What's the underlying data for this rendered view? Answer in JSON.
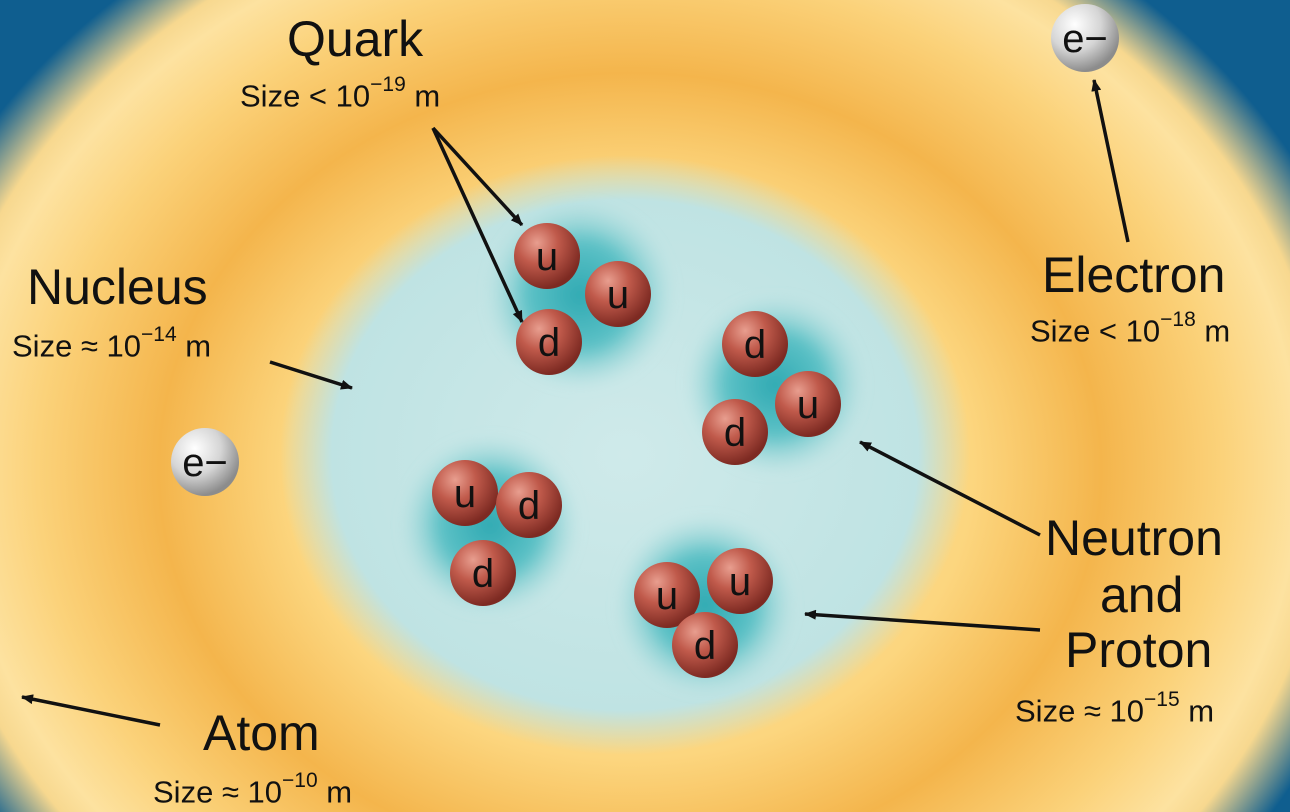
{
  "labels": {
    "quark": {
      "name": "Quark",
      "size_prefix": "Size < 10",
      "exponent": "−19",
      "unit": " m"
    },
    "electron": {
      "name": "Electron",
      "size_prefix": "Size < 10",
      "exponent": "−18",
      "unit": " m"
    },
    "nucleus": {
      "name": "Nucleus",
      "size_prefix": "Size ≈ 10",
      "exponent": "−14",
      "unit": " m"
    },
    "nucleon": {
      "name_line1": "Neutron",
      "name_line2": "and",
      "name_line3": "Proton",
      "size_prefix": "Size ≈ 10",
      "exponent": "−15",
      "unit": " m"
    },
    "atom": {
      "name": "Atom",
      "size_prefix": "Size ≈ 10",
      "exponent": "−10",
      "unit": " m"
    }
  },
  "electron_symbol": "e−",
  "quarks": [
    "u",
    "u",
    "d",
    "d",
    "u",
    "d",
    "u",
    "d",
    "d",
    "u",
    "u",
    "d"
  ],
  "colors": {
    "atom_cloud": "#fcd67f",
    "atom_ring": "#f4b54c",
    "nucleus": "#bfe3e3",
    "nucleon_glow": "#3fb4bc",
    "quark": "#b0483d",
    "electron": "#d9d9d9",
    "background": "#0f5e8f"
  }
}
